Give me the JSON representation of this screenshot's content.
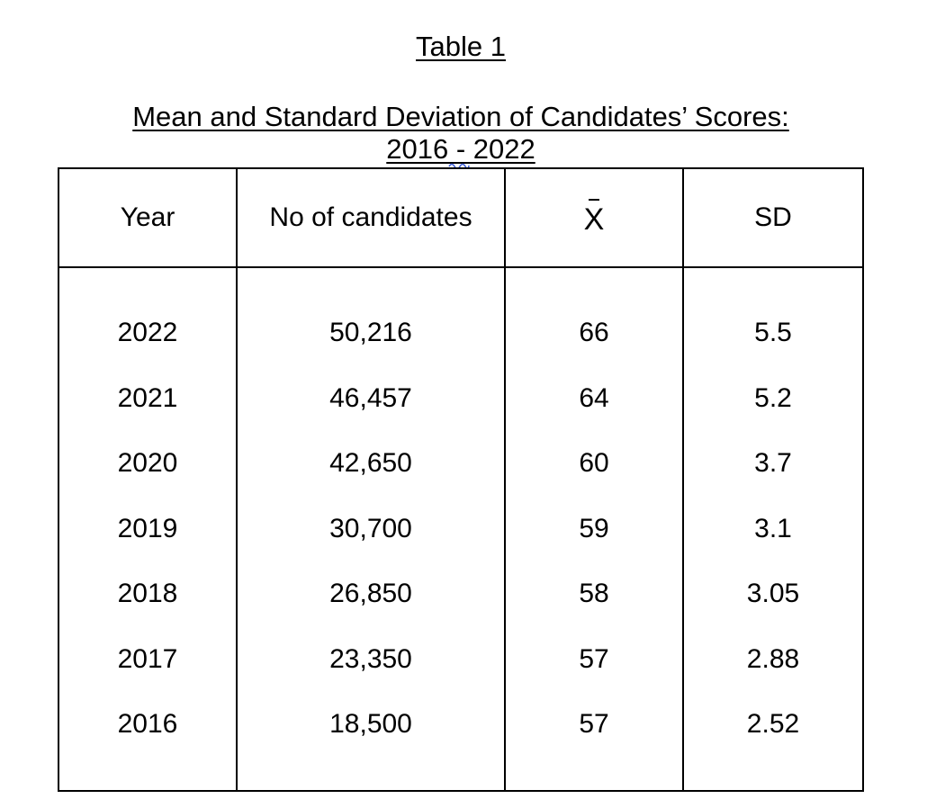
{
  "title": "Table 1",
  "caption": {
    "line1": "Mean and Standard Deviation of Candidates’ Scores:",
    "line2": "2016 - 2022"
  },
  "table": {
    "headers": [
      "Year",
      "No of candidates",
      "X",
      "SD"
    ],
    "rows": [
      [
        "2022",
        "50,216",
        "66",
        "5.5"
      ],
      [
        "2021",
        "46,457",
        "64",
        "5.2"
      ],
      [
        "2020",
        "42,650",
        "60",
        "3.7"
      ],
      [
        "2019",
        "30,700",
        "59",
        "3.1"
      ],
      [
        "2018",
        "26,850",
        "58",
        "3.05"
      ],
      [
        "2017",
        "23,350",
        "57",
        "2.88"
      ],
      [
        "2016",
        "18,500",
        "57",
        "2.52"
      ]
    ]
  }
}
